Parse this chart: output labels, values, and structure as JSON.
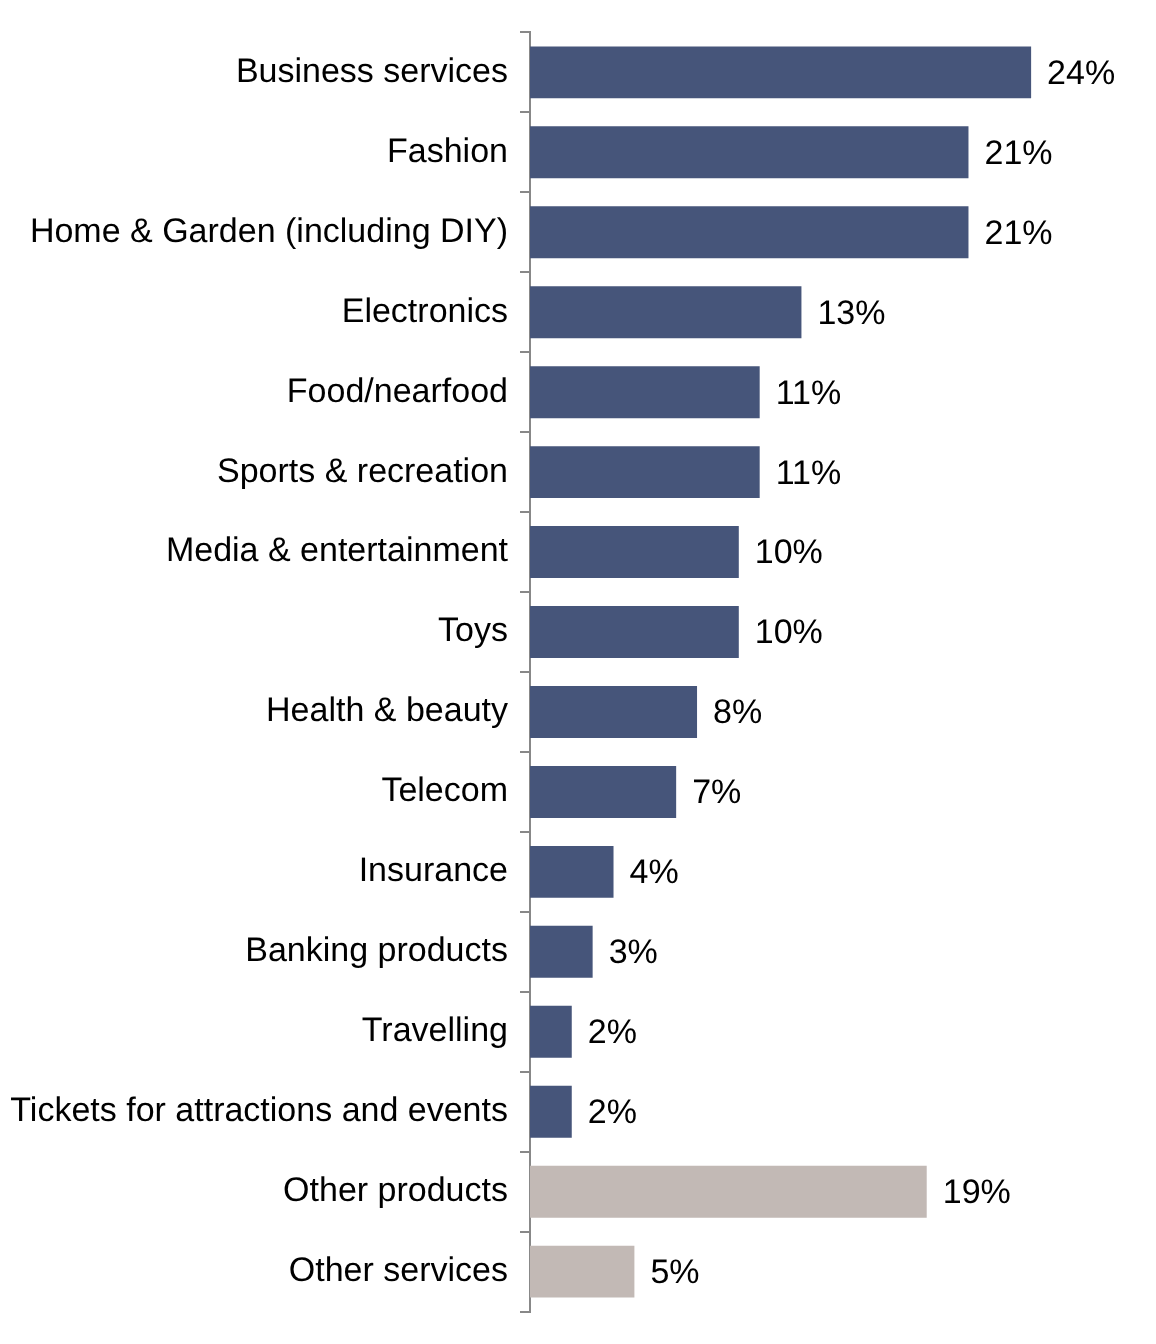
{
  "chart_data": {
    "type": "bar",
    "orientation": "horizontal",
    "categories": [
      "Business services",
      "Fashion",
      "Home & Garden (including DIY)",
      "Electronics",
      "Food/nearfood",
      "Sports & recreation",
      "Media & entertainment",
      "Toys",
      "Health & beauty",
      "Telecom",
      "Insurance",
      "Banking products",
      "Travelling",
      "Tickets for attractions and events",
      "Other products",
      "Other services"
    ],
    "values": [
      24,
      21,
      21,
      13,
      11,
      11,
      10,
      10,
      8,
      7,
      4,
      3,
      2,
      2,
      19,
      5
    ],
    "value_labels": [
      "24%",
      "21%",
      "21%",
      "13%",
      "11%",
      "11%",
      "10%",
      "10%",
      "8%",
      "7%",
      "4%",
      "3%",
      "2%",
      "2%",
      "19%",
      "5%"
    ],
    "colors": [
      "#46557a",
      "#46557a",
      "#46557a",
      "#46557a",
      "#46557a",
      "#46557a",
      "#46557a",
      "#46557a",
      "#46557a",
      "#46557a",
      "#46557a",
      "#46557a",
      "#46557a",
      "#46557a",
      "#c2b9b5",
      "#c2b9b5"
    ],
    "tick_labels": "y",
    "grid": false,
    "legend": false
  }
}
